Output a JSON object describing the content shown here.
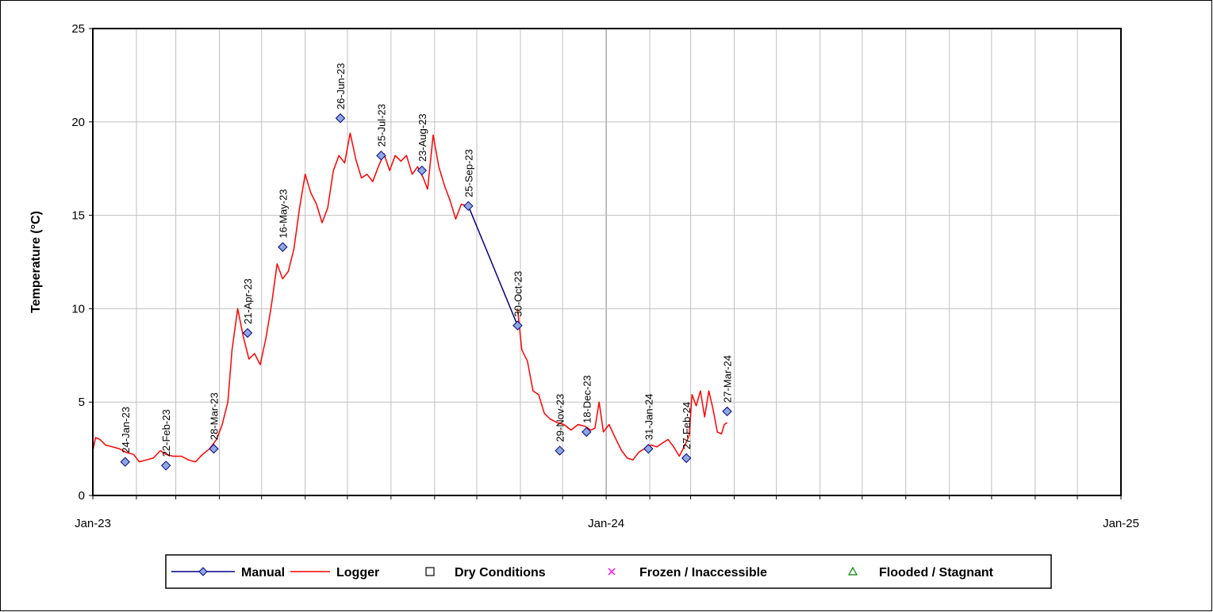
{
  "chart_data": {
    "type": "line",
    "ylabel": "Temperature (°C)",
    "xlabel": "",
    "title": "",
    "ylim": [
      0,
      25
    ],
    "yticks": [
      "0",
      "5",
      "10",
      "15",
      "20",
      "25"
    ],
    "xlim": [
      "2023-01-01",
      "2025-01-01"
    ],
    "xticks": [
      {
        "date": "2023-01-01",
        "label": "Jan-23"
      },
      {
        "date": "2024-01-01",
        "label": "Jan-24"
      },
      {
        "date": "2025-01-01",
        "label": "Jan-25"
      }
    ],
    "grid": true,
    "legend_position": "bottom",
    "legend": [
      "Manual",
      "Logger",
      "Dry Conditions",
      "Frozen / Inaccessible",
      "Flooded / Stagnant"
    ],
    "series": [
      {
        "name": "Manual",
        "color": "#000080",
        "marker_color": "#8fa8e0",
        "marker": "diamond",
        "points": [
          {
            "x": "2023-01-24",
            "y": 1.8,
            "label": "24-Jan-23"
          },
          {
            "x": "2023-02-22",
            "y": 1.6,
            "label": "22-Feb-23"
          },
          {
            "x": "2023-03-28",
            "y": 2.5,
            "label": "28-Mar-23"
          },
          {
            "x": "2023-04-21",
            "y": 8.7,
            "label": "21-Apr-23"
          },
          {
            "x": "2023-05-16",
            "y": 13.3,
            "label": "16-May-23"
          },
          {
            "x": "2023-06-26",
            "y": 20.2,
            "label": "26-Jun-23"
          },
          {
            "x": "2023-07-25",
            "y": 18.2,
            "label": "25-Jul-23"
          },
          {
            "x": "2023-08-23",
            "y": 17.4,
            "label": "23-Aug-23"
          },
          {
            "x": "2023-09-25",
            "y": 15.5,
            "label": "25-Sep-23"
          },
          {
            "x": "2023-10-30",
            "y": 9.1,
            "label": "30-Oct-23"
          },
          {
            "x": "2023-11-29",
            "y": 2.4,
            "label": "29-Nov-23"
          },
          {
            "x": "2023-12-18",
            "y": 3.4,
            "label": "18-Dec-23"
          },
          {
            "x": "2024-01-31",
            "y": 2.5,
            "label": "31-Jan-24"
          },
          {
            "x": "2024-02-27",
            "y": 2.0,
            "label": "27-Feb-24"
          },
          {
            "x": "2024-03-27",
            "y": 4.5,
            "label": "27-Mar-24"
          }
        ],
        "connected_segments": [
          [
            "2023-09-25",
            "2023-10-30"
          ]
        ]
      },
      {
        "name": "Logger",
        "color": "#ff0000",
        "segments": [
          [
            [
              "2023-01-01",
              2.4
            ],
            [
              "2023-01-03",
              3.1
            ],
            [
              "2023-01-06",
              3.0
            ],
            [
              "2023-01-10",
              2.7
            ],
            [
              "2023-01-15",
              2.6
            ],
            [
              "2023-01-20",
              2.5
            ],
            [
              "2023-01-25",
              2.3
            ],
            [
              "2023-01-30",
              2.2
            ],
            [
              "2023-02-03",
              1.8
            ],
            [
              "2023-02-08",
              1.9
            ],
            [
              "2023-02-13",
              2.0
            ],
            [
              "2023-02-18",
              2.4
            ],
            [
              "2023-02-22",
              2.2
            ],
            [
              "2023-02-27",
              2.1
            ],
            [
              "2023-03-05",
              2.1
            ],
            [
              "2023-03-10",
              1.9
            ],
            [
              "2023-03-15",
              1.8
            ],
            [
              "2023-03-20",
              2.2
            ],
            [
              "2023-03-25",
              2.5
            ],
            [
              "2023-03-30",
              3.0
            ],
            [
              "2023-04-03",
              3.8
            ],
            [
              "2023-04-07",
              5.0
            ],
            [
              "2023-04-10",
              7.8
            ],
            [
              "2023-04-14",
              10.0
            ],
            [
              "2023-04-18",
              8.5
            ],
            [
              "2023-04-22",
              7.3
            ],
            [
              "2023-04-26",
              7.6
            ],
            [
              "2023-04-30",
              7.0
            ],
            [
              "2023-05-04",
              8.4
            ],
            [
              "2023-05-08",
              10.2
            ],
            [
              "2023-05-12",
              12.4
            ],
            [
              "2023-05-16",
              11.6
            ],
            [
              "2023-05-20",
              12.0
            ],
            [
              "2023-05-24",
              13.2
            ],
            [
              "2023-05-28",
              15.4
            ],
            [
              "2023-06-01",
              17.2
            ],
            [
              "2023-06-05",
              16.2
            ],
            [
              "2023-06-09",
              15.6
            ],
            [
              "2023-06-13",
              14.6
            ],
            [
              "2023-06-17",
              15.4
            ],
            [
              "2023-06-21",
              17.4
            ],
            [
              "2023-06-25",
              18.2
            ],
            [
              "2023-06-29",
              17.8
            ],
            [
              "2023-07-03",
              19.4
            ],
            [
              "2023-07-07",
              18.0
            ],
            [
              "2023-07-11",
              17.0
            ],
            [
              "2023-07-15",
              17.2
            ],
            [
              "2023-07-19",
              16.8
            ],
            [
              "2023-07-23",
              17.6
            ],
            [
              "2023-07-27",
              18.3
            ],
            [
              "2023-07-31",
              17.4
            ],
            [
              "2023-08-04",
              18.2
            ],
            [
              "2023-08-08",
              17.9
            ],
            [
              "2023-08-12",
              18.2
            ],
            [
              "2023-08-16",
              17.2
            ],
            [
              "2023-08-20",
              17.6
            ],
            [
              "2023-08-24",
              17.0
            ],
            [
              "2023-08-27",
              16.4
            ],
            [
              "2023-08-31",
              19.3
            ],
            [
              "2023-09-04",
              17.6
            ],
            [
              "2023-09-08",
              16.6
            ],
            [
              "2023-09-12",
              15.8
            ],
            [
              "2023-09-16",
              14.8
            ],
            [
              "2023-09-20",
              15.6
            ],
            [
              "2023-09-24",
              15.5
            ]
          ],
          [
            [
              "2023-10-30",
              10.0
            ],
            [
              "2023-11-02",
              7.8
            ],
            [
              "2023-11-06",
              7.2
            ],
            [
              "2023-11-10",
              5.6
            ],
            [
              "2023-11-14",
              5.4
            ],
            [
              "2023-11-18",
              4.4
            ],
            [
              "2023-11-22",
              4.1
            ],
            [
              "2023-11-27",
              3.9
            ],
            [
              "2023-12-02",
              3.8
            ],
            [
              "2023-12-07",
              3.5
            ],
            [
              "2023-12-12",
              3.8
            ],
            [
              "2023-12-17",
              3.7
            ],
            [
              "2023-12-21",
              3.5
            ],
            [
              "2023-12-24",
              3.6
            ],
            [
              "2023-12-27",
              5.0
            ],
            [
              "2023-12-30",
              3.4
            ],
            [
              "2024-01-03",
              3.8
            ],
            [
              "2024-01-08",
              3.0
            ],
            [
              "2024-01-12",
              2.4
            ],
            [
              "2024-01-16",
              2.0
            ],
            [
              "2024-01-20",
              1.9
            ],
            [
              "2024-01-24",
              2.3
            ],
            [
              "2024-01-28",
              2.5
            ],
            [
              "2024-02-02",
              2.7
            ],
            [
              "2024-02-06",
              2.6
            ],
            [
              "2024-02-10",
              2.8
            ],
            [
              "2024-02-14",
              3.0
            ],
            [
              "2024-02-18",
              2.6
            ],
            [
              "2024-02-22",
              2.1
            ],
            [
              "2024-02-26",
              2.7
            ],
            [
              "2024-02-29",
              3.2
            ],
            [
              "2024-03-02",
              5.4
            ],
            [
              "2024-03-05",
              4.8
            ],
            [
              "2024-03-08",
              5.6
            ],
            [
              "2024-03-11",
              4.2
            ],
            [
              "2024-03-14",
              5.6
            ],
            [
              "2024-03-17",
              4.6
            ],
            [
              "2024-03-20",
              3.4
            ],
            [
              "2024-03-23",
              3.3
            ],
            [
              "2024-03-25",
              3.8
            ],
            [
              "2024-03-27",
              3.9
            ]
          ]
        ]
      },
      {
        "name": "Dry Conditions",
        "marker": "square",
        "color": "#000000",
        "points": []
      },
      {
        "name": "Frozen / Inaccessible",
        "marker": "x",
        "color": "#ff00ff",
        "points": []
      },
      {
        "name": "Flooded / Stagnant",
        "marker": "triangle",
        "color": "#008000",
        "points": []
      }
    ]
  }
}
